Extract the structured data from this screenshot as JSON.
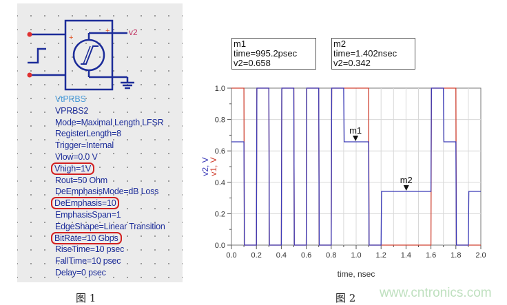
{
  "figure1": {
    "caption": "图 1",
    "pin_label": "v2",
    "params": [
      "VtPRBS",
      "VPRBS2",
      "Mode=Maximal Length LFSR",
      "RegisterLength=8",
      "Trigger=Internal",
      "Vlow=0.0 V",
      "Vhigh=1V",
      "Rout=50 Ohm",
      "DeEmphasisMode=dB Loss",
      "DeEmphasis=10",
      "EmphasisSpan=1",
      "EdgeShape=Linear Transition",
      "BitRate=10 Gbps",
      "RiseTime=10 psec",
      "FallTime=10 psec",
      "Delay=0 psec"
    ],
    "highlighted": [
      "Vhigh=1V",
      "DeEmphasis=10",
      "BitRate=10 Gbps"
    ],
    "highlight_color": "#d22020"
  },
  "figure2": {
    "caption": "图 2",
    "markers": [
      {
        "name": "m1",
        "time": "time=995.2psec",
        "value": "v2=0.658",
        "t": 0.9952,
        "v": 0.658
      },
      {
        "name": "m2",
        "time": "time=1.402nsec",
        "value": "v2=0.342",
        "t": 1.402,
        "v": 0.342
      }
    ]
  },
  "chart_data": {
    "type": "line",
    "xlabel": "time, nsec",
    "ylabels": [
      "v2, V",
      "v1, V"
    ],
    "xlim": [
      0,
      2.0
    ],
    "ylim": [
      0,
      1.0
    ],
    "xticks": [
      "0.0",
      "0.2",
      "0.4",
      "0.6",
      "0.8",
      "1.0",
      "1.2",
      "1.4",
      "1.6",
      "1.8",
      "2.0"
    ],
    "yticks": [
      "0.0",
      "0.2",
      "0.4",
      "0.6",
      "0.8",
      "1.0"
    ],
    "grid": true,
    "bit_period_ns": 0.1,
    "series": [
      {
        "name": "v1",
        "color": "#d04030",
        "levels": [
          1,
          0,
          1,
          0,
          1,
          0,
          1,
          0,
          1,
          1,
          1,
          0,
          0,
          0,
          0,
          0,
          1,
          1,
          0,
          0
        ]
      },
      {
        "name": "v2",
        "color": "#3a3ab8",
        "levels": [
          0.658,
          0,
          1,
          0,
          1,
          0,
          1,
          0,
          1,
          0.658,
          0.658,
          0,
          0.342,
          0.342,
          0.342,
          0.342,
          1,
          0.658,
          0,
          0.342
        ]
      }
    ]
  },
  "watermark": "www.cntronics.com"
}
